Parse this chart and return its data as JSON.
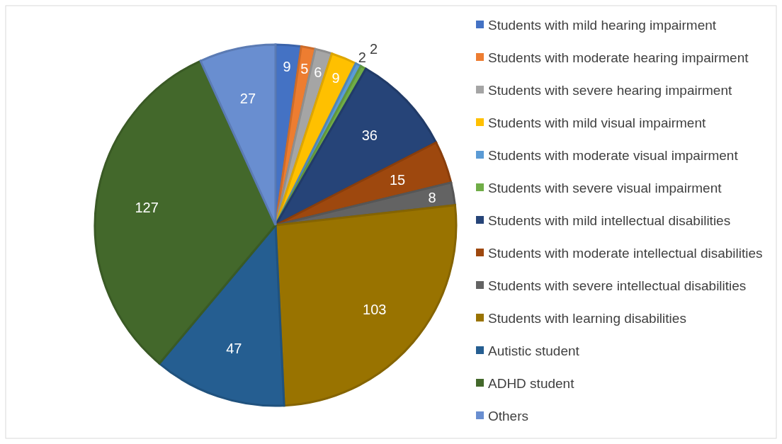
{
  "chart_data": {
    "type": "pie",
    "categories": [
      "Students with mild hearing impairment",
      "Students with moderate hearing impairment",
      "Students with severe hearing impairment",
      "Students with mild visual impairment",
      "Students with moderate visual impairment",
      "Students with severe visual impairment",
      "Students with mild intellectual disabilities",
      "Students with moderate intellectual disabilities",
      "Students with severe intellectual disabilities",
      "Students with learning disabilities",
      "Autistic student",
      "ADHD student",
      "Others"
    ],
    "values": [
      9,
      5,
      6,
      9,
      2,
      2,
      36,
      15,
      8,
      103,
      47,
      127,
      27
    ],
    "colors": [
      "#4472c4",
      "#ed7d31",
      "#a5a5a5",
      "#ffc000",
      "#5b9bd5",
      "#70ad47",
      "#264478",
      "#9e480e",
      "#636363",
      "#997300",
      "#255e91",
      "#43682b",
      "#698ed0"
    ],
    "data_labels": true,
    "legend": "right"
  }
}
